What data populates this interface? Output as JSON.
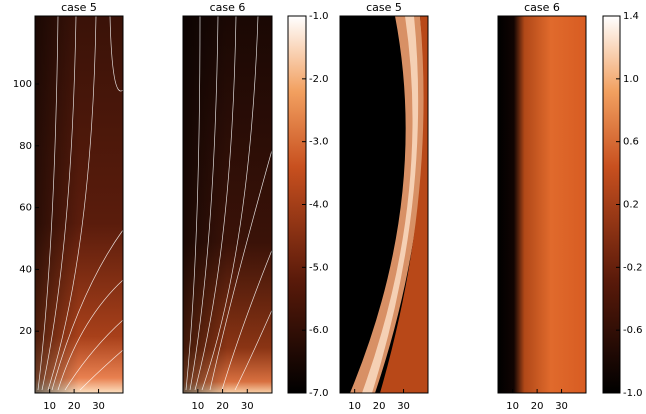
{
  "chart_data": [
    {
      "type": "heatmap",
      "title": "case 5",
      "xlim": [
        4,
        40
      ],
      "xticks": [
        10,
        20,
        30
      ],
      "ylim": [
        0,
        122
      ],
      "yticks": [
        20,
        40,
        60,
        80,
        100
      ]
    },
    {
      "type": "heatmap",
      "title": "case 6",
      "xlim": [
        4,
        40
      ],
      "xticks": [
        10,
        20,
        30
      ],
      "ylim": [
        0,
        122
      ]
    },
    {
      "type": "colorbar",
      "ylim": [
        -7,
        -1
      ],
      "yticks": [
        {
          "value": -1,
          "label": "-1.0"
        },
        {
          "value": -2,
          "label": "-2.0"
        },
        {
          "value": -3,
          "label": "-3.0"
        },
        {
          "value": -4,
          "label": "-4.0"
        },
        {
          "value": -5,
          "label": "-5.0"
        },
        {
          "value": -6,
          "label": "-6.0"
        },
        {
          "value": -7,
          "label": "-7.0"
        }
      ]
    },
    {
      "type": "heatmap",
      "title": "case 5",
      "xlim": [
        4,
        40
      ],
      "xticks": [
        10,
        20,
        30
      ],
      "ylim": [
        0,
        122
      ]
    },
    {
      "type": "heatmap",
      "title": "case 6",
      "xlim": [
        4,
        40
      ],
      "xticks": [
        10,
        20,
        30
      ],
      "ylim": [
        0,
        122
      ]
    },
    {
      "type": "colorbar",
      "ylim": [
        -1,
        1.4
      ],
      "yticks": [
        {
          "value": 1.4,
          "label": "1.4"
        },
        {
          "value": 1,
          "label": "1.0"
        },
        {
          "value": 0.6,
          "label": "0.6"
        },
        {
          "value": 0.2,
          "label": "0.2"
        },
        {
          "value": -0.2,
          "label": "-0.2"
        },
        {
          "value": -0.6,
          "label": "-0.6"
        },
        {
          "value": -1,
          "label": "-1.0"
        }
      ]
    }
  ]
}
